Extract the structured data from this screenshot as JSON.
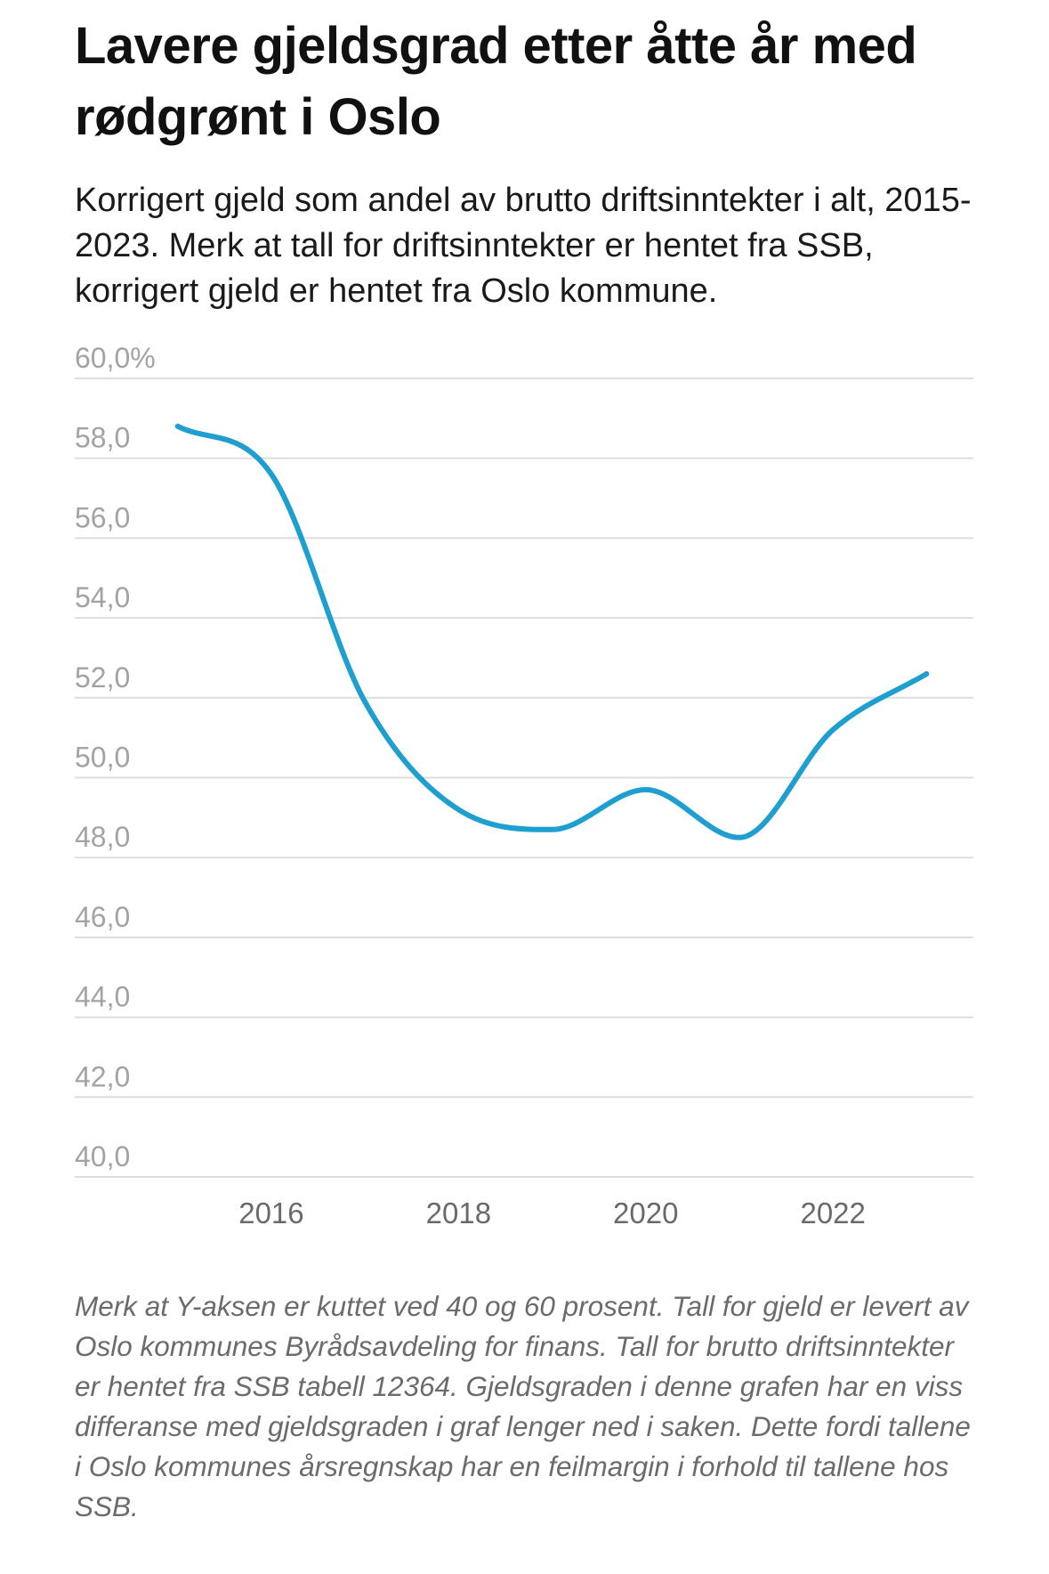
{
  "header": {
    "title": "Lavere gjeldsgrad etter åtte år med rødgrønt i Oslo",
    "subtitle": "Korrigert gjeld som andel av brutto driftsinntekter i alt, 2015-2023. Merk at tall for driftsinntekter er hentet fra SSB, korrigert gjeld er hentet fra Oslo kommune."
  },
  "footnote": "Merk at Y-aksen er kuttet ved 40 og 60 prosent. Tall for gjeld er levert av Oslo kommunes Byrådsavdeling for finans. Tall for brutto driftsinntekter er hentet fra SSB tabell 12364. Gjeldsgraden i denne grafen har en viss differanse med gjeldsgraden i graf lenger ned i saken. Dette fordi tallene i Oslo kommunes årsregnskap har en feilmargin i forhold til tallene hos SSB.",
  "colors": {
    "line": "#1f9fd0",
    "grid": "#dddddd",
    "tick_text": "#a3a3a3",
    "x_text": "#6a6a6a"
  },
  "chart_data": {
    "type": "line",
    "title": "Lavere gjeldsgrad etter åtte år med rødgrønt i Oslo",
    "xlabel": "",
    "ylabel": "",
    "x": [
      2015,
      2016,
      2017,
      2018,
      2019,
      2020,
      2021,
      2022,
      2023
    ],
    "series": [
      {
        "values": [
          58.8,
          57.6,
          51.9,
          49.2,
          48.7,
          49.7,
          48.5,
          51.2,
          52.6
        ]
      }
    ],
    "ylim": [
      40,
      60
    ],
    "xlim": [
      2013.9,
      2023.5
    ],
    "y_ticks": [
      60,
      58,
      56,
      54,
      52,
      50,
      48,
      46,
      44,
      42,
      40
    ],
    "y_tick_labels": [
      "60,0%",
      "58,0",
      "56,0",
      "54,0",
      "52,0",
      "50,0",
      "48,0",
      "46,0",
      "44,0",
      "42,0",
      "40,0"
    ],
    "x_ticks": [
      2016,
      2018,
      2020,
      2022
    ],
    "x_tick_labels": [
      "2016",
      "2018",
      "2020",
      "2022"
    ],
    "grid": true,
    "legend": "none"
  }
}
